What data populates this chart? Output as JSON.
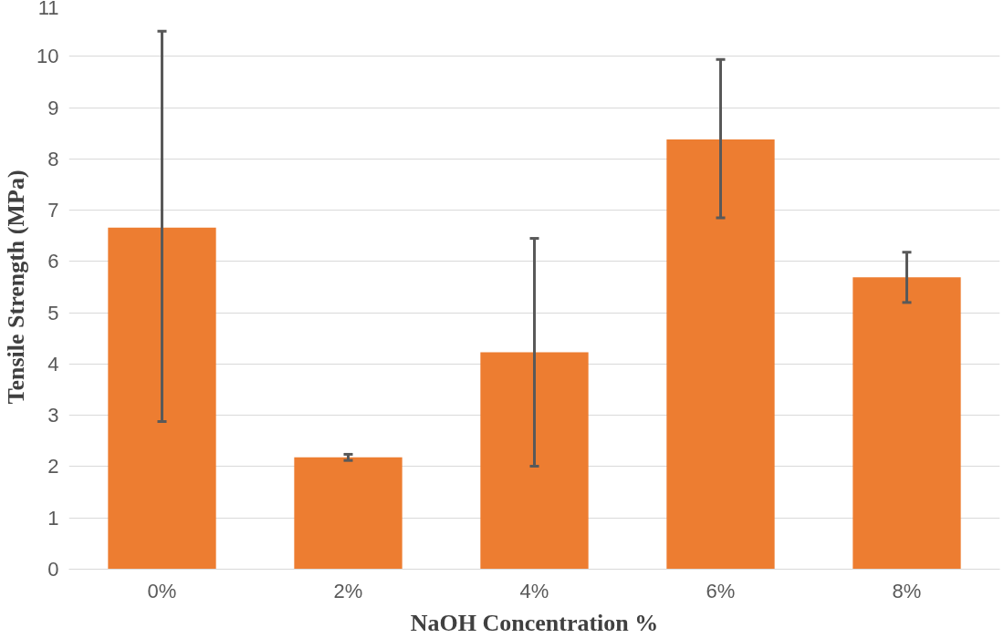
{
  "chart_data": {
    "type": "bar",
    "xlabel": "NaOH Concentration %",
    "ylabel": "Tensile Strength (MPa)",
    "categories": [
      "0%",
      "2%",
      "4%",
      "6%",
      "8%"
    ],
    "values": [
      6.66,
      2.18,
      4.23,
      8.38,
      5.69
    ],
    "errors": [
      [
        2.88,
        10.49
      ],
      [
        2.12,
        2.24
      ],
      [
        2.01,
        6.45
      ],
      [
        6.85,
        9.94
      ],
      [
        5.2,
        6.18
      ]
    ],
    "color": "#ed7d31",
    "ylim": [
      0,
      11
    ],
    "yticks": [
      0,
      1,
      2,
      3,
      4,
      5,
      6,
      7,
      8,
      9,
      10,
      11
    ],
    "grid": "y"
  }
}
